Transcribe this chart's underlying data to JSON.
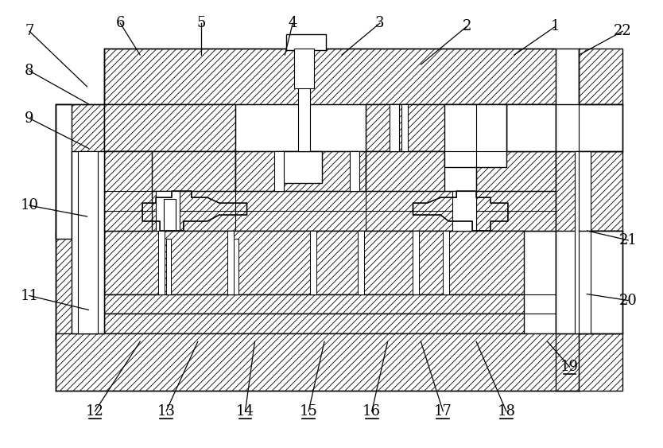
{
  "fig_width": 8.34,
  "fig_height": 5.63,
  "dpi": 100,
  "bg_color": "#ffffff",
  "hatch": "////",
  "callouts": [
    [
      "7",
      35,
      38,
      108,
      108
    ],
    [
      "6",
      150,
      28,
      175,
      68
    ],
    [
      "5",
      252,
      28,
      252,
      68
    ],
    [
      "4",
      368,
      28,
      358,
      68
    ],
    [
      "3",
      478,
      28,
      430,
      68
    ],
    [
      "2",
      588,
      32,
      530,
      80
    ],
    [
      "1",
      700,
      32,
      648,
      68
    ],
    [
      "22",
      785,
      38,
      730,
      68
    ],
    [
      "8",
      35,
      88,
      110,
      130
    ],
    [
      "9",
      35,
      148,
      110,
      186
    ],
    [
      "10",
      35,
      258,
      108,
      272
    ],
    [
      "11",
      35,
      372,
      110,
      390
    ],
    [
      "21",
      792,
      302,
      740,
      290
    ],
    [
      "20",
      792,
      378,
      740,
      370
    ],
    [
      "19",
      718,
      462,
      690,
      430
    ],
    [
      "12",
      118,
      518,
      175,
      430
    ],
    [
      "13",
      208,
      518,
      248,
      430
    ],
    [
      "14",
      308,
      518,
      320,
      430
    ],
    [
      "15",
      388,
      518,
      408,
      430
    ],
    [
      "16",
      468,
      518,
      488,
      430
    ],
    [
      "17",
      558,
      518,
      530,
      430
    ],
    [
      "18",
      638,
      518,
      600,
      430
    ]
  ],
  "underlined": [
    "12",
    "13",
    "14",
    "15",
    "16",
    "17",
    "18",
    "19"
  ]
}
